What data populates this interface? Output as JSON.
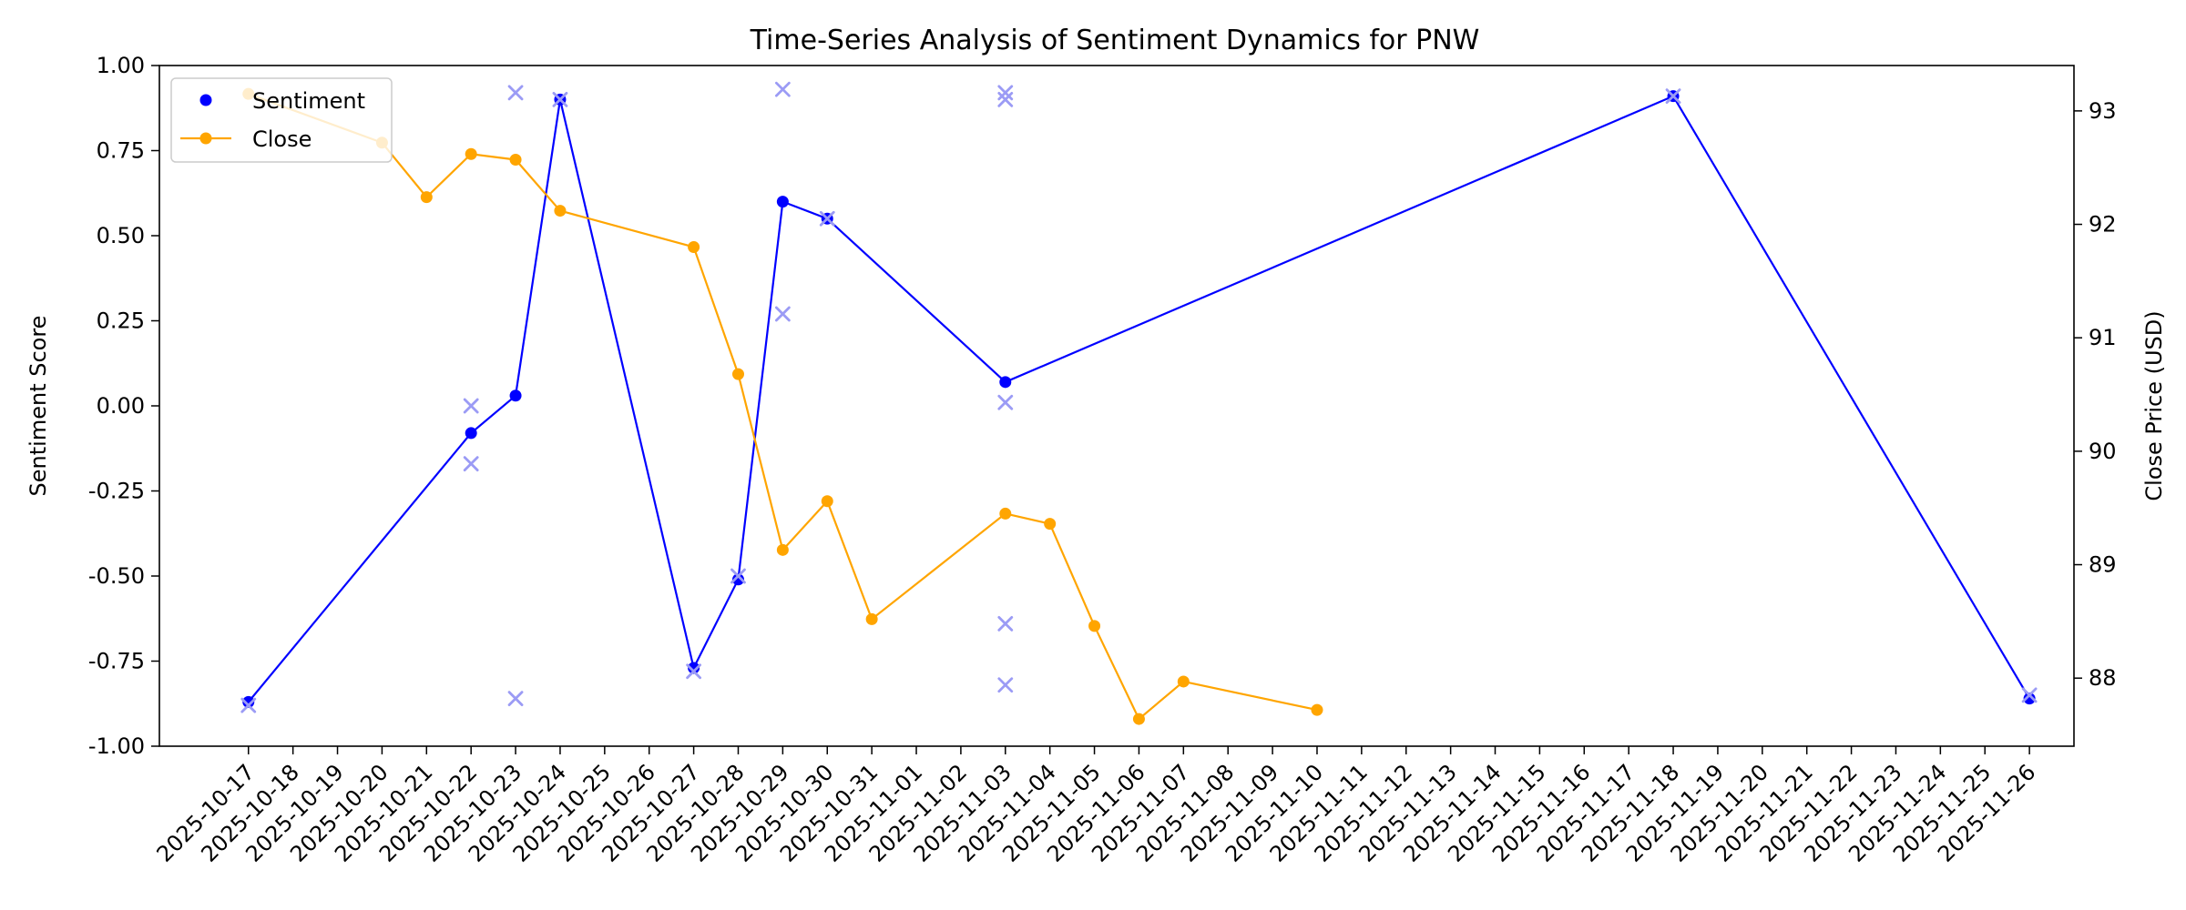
{
  "chart_data": {
    "type": "line",
    "title": "Time-Series Analysis of Sentiment Dynamics for PNW",
    "ylabel_left": "Sentiment Score",
    "ylabel_right": "Close Price (USD)",
    "xlabel": "",
    "x_scale": "date",
    "xlim": [
      "2025-10-15",
      "2025-11-27"
    ],
    "x_ticks": [
      "2025-10-17",
      "2025-10-18",
      "2025-10-19",
      "2025-10-20",
      "2025-10-21",
      "2025-10-22",
      "2025-10-23",
      "2025-10-24",
      "2025-10-25",
      "2025-10-26",
      "2025-10-27",
      "2025-10-28",
      "2025-10-29",
      "2025-10-30",
      "2025-10-31",
      "2025-11-01",
      "2025-11-02",
      "2025-11-03",
      "2025-11-04",
      "2025-11-05",
      "2025-11-06",
      "2025-11-07",
      "2025-11-08",
      "2025-11-09",
      "2025-11-10",
      "2025-11-11",
      "2025-11-12",
      "2025-11-13",
      "2025-11-14",
      "2025-11-15",
      "2025-11-16",
      "2025-11-17",
      "2025-11-18",
      "2025-11-19",
      "2025-11-20",
      "2025-11-21",
      "2025-11-22",
      "2025-11-23",
      "2025-11-24",
      "2025-11-25",
      "2025-11-26"
    ],
    "ylim_left": [
      -1.0,
      1.0
    ],
    "yticks_left": [
      "-1.00",
      "-0.75",
      "-0.50",
      "-0.25",
      "0.00",
      "0.25",
      "0.50",
      "0.75",
      "1.00"
    ],
    "ylim_right": [
      87.4,
      93.4
    ],
    "yticks_right": [
      "88",
      "89",
      "90",
      "91",
      "92",
      "93"
    ],
    "legend": {
      "location": "upper left",
      "entries": [
        "Sentiment",
        "Close"
      ]
    },
    "grid": false,
    "series": [
      {
        "name": "Sentiment",
        "axis": "left",
        "color": "#0000ff",
        "style": "line+dots",
        "x": [
          "2025-10-17",
          "2025-10-22",
          "2025-10-23",
          "2025-10-24",
          "2025-10-27",
          "2025-10-28",
          "2025-10-29",
          "2025-10-30",
          "2025-11-03",
          "2025-11-18",
          "2025-11-26"
        ],
        "y": [
          -0.87,
          -0.08,
          0.03,
          0.9,
          -0.77,
          -0.51,
          0.6,
          0.55,
          0.07,
          0.91,
          -0.86
        ]
      },
      {
        "name": "Close",
        "axis": "right",
        "color": "#ffa500",
        "style": "line+dots",
        "x": [
          "2025-10-17",
          "2025-10-20",
          "2025-10-21",
          "2025-10-22",
          "2025-10-23",
          "2025-10-24",
          "2025-10-27",
          "2025-10-28",
          "2025-10-29",
          "2025-10-30",
          "2025-10-31",
          "2025-11-03",
          "2025-11-04",
          "2025-11-05",
          "2025-11-06",
          "2025-11-07",
          "2025-11-10"
        ],
        "y": [
          93.15,
          92.72,
          92.24,
          92.62,
          92.57,
          92.12,
          91.8,
          90.68,
          89.13,
          89.56,
          88.52,
          89.45,
          89.36,
          88.46,
          87.64,
          87.97,
          87.72
        ]
      },
      {
        "axis": "left",
        "color": "#9b9bf5",
        "style": "x-markers",
        "x": [
          "2025-10-17",
          "2025-10-22",
          "2025-10-22",
          "2025-10-23",
          "2025-10-23",
          "2025-10-24",
          "2025-10-27",
          "2025-10-28",
          "2025-10-29",
          "2025-10-29",
          "2025-10-30",
          "2025-11-03",
          "2025-11-03",
          "2025-11-03",
          "2025-11-03",
          "2025-11-03",
          "2025-11-18",
          "2025-11-26"
        ],
        "y": [
          -0.88,
          0.0,
          -0.17,
          0.92,
          -0.86,
          0.9,
          -0.78,
          -0.5,
          0.93,
          0.27,
          0.55,
          0.92,
          0.9,
          0.01,
          -0.64,
          -0.82,
          0.91,
          -0.85
        ]
      }
    ]
  }
}
